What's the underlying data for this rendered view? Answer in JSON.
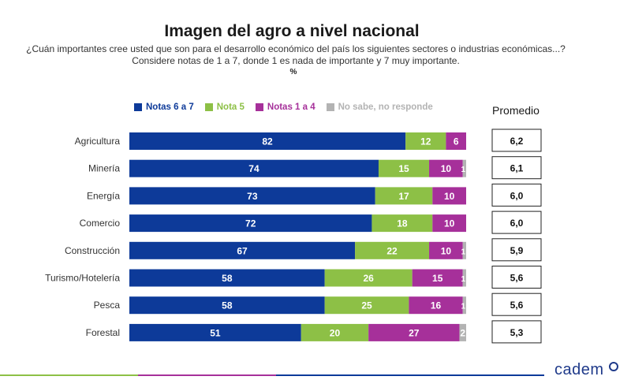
{
  "chart_data": {
    "type": "bar",
    "orientation": "horizontal",
    "stacked": true,
    "title": "Imagen del agro a nivel nacional",
    "subtitle_line1": "¿Cuán importantes cree usted que son para el desarrollo económico del país los siguientes sectores o industrias económicas...?",
    "subtitle_line2": "Considere notas de 1 a 7, donde 1 es nada de importante y 7 muy importante.",
    "unit": "%",
    "legend_position": "top",
    "grid": false,
    "xlim": [
      0,
      100
    ],
    "categories": [
      "Agricultura",
      "Minería",
      "Energía",
      "Comercio",
      "Construcción",
      "Turismo/Hotelería",
      "Pesca",
      "Forestal"
    ],
    "series": [
      {
        "name": "Notas 6 a 7",
        "color": "#0d3a99",
        "label_color": "#ffffff",
        "values": [
          82,
          74,
          73,
          72,
          67,
          58,
          58,
          51
        ]
      },
      {
        "name": "Nota 5",
        "color": "#8dc046",
        "label_color": "#ffffff",
        "values": [
          12,
          15,
          17,
          18,
          22,
          26,
          25,
          20
        ]
      },
      {
        "name": "Notas 1 a 4",
        "color": "#a6309a",
        "label_color": "#ffffff",
        "values": [
          6,
          10,
          10,
          10,
          10,
          15,
          16,
          27
        ]
      },
      {
        "name": "No sabe, no responde",
        "color": "#b3b3b3",
        "label_color": "#ffffff",
        "values": [
          0,
          1,
          0,
          0,
          1,
          1,
          1,
          2
        ]
      }
    ],
    "promedio_header": "Promedio",
    "promedio": [
      "6,2",
      "6,1",
      "6,0",
      "6,0",
      "5,9",
      "5,6",
      "5,6",
      "5,3"
    ]
  },
  "brand": {
    "logo_text": "cadem",
    "footer_colors": [
      "#8dc046",
      "#a6309a",
      "#0d3a99"
    ]
  }
}
